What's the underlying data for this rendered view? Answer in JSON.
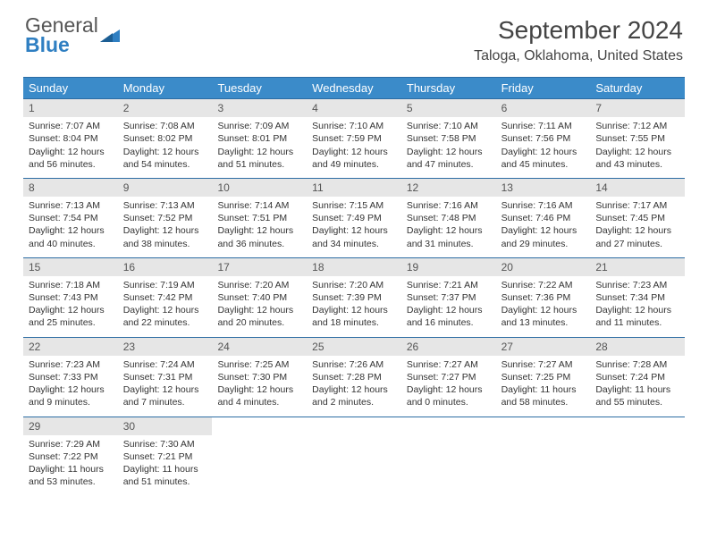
{
  "logo": {
    "line1": "General",
    "line2": "Blue"
  },
  "title": "September 2024",
  "location": "Taloga, Oklahoma, United States",
  "colors": {
    "header_bg": "#3b8bc9",
    "rule": "#2c6ca3",
    "daynum_bg": "#e6e6e6",
    "logo_blue": "#2f7fc2"
  },
  "dow": [
    "Sunday",
    "Monday",
    "Tuesday",
    "Wednesday",
    "Thursday",
    "Friday",
    "Saturday"
  ],
  "weeks": [
    [
      {
        "n": "1",
        "sr": "Sunrise: 7:07 AM",
        "ss": "Sunset: 8:04 PM",
        "d1": "Daylight: 12 hours",
        "d2": "and 56 minutes."
      },
      {
        "n": "2",
        "sr": "Sunrise: 7:08 AM",
        "ss": "Sunset: 8:02 PM",
        "d1": "Daylight: 12 hours",
        "d2": "and 54 minutes."
      },
      {
        "n": "3",
        "sr": "Sunrise: 7:09 AM",
        "ss": "Sunset: 8:01 PM",
        "d1": "Daylight: 12 hours",
        "d2": "and 51 minutes."
      },
      {
        "n": "4",
        "sr": "Sunrise: 7:10 AM",
        "ss": "Sunset: 7:59 PM",
        "d1": "Daylight: 12 hours",
        "d2": "and 49 minutes."
      },
      {
        "n": "5",
        "sr": "Sunrise: 7:10 AM",
        "ss": "Sunset: 7:58 PM",
        "d1": "Daylight: 12 hours",
        "d2": "and 47 minutes."
      },
      {
        "n": "6",
        "sr": "Sunrise: 7:11 AM",
        "ss": "Sunset: 7:56 PM",
        "d1": "Daylight: 12 hours",
        "d2": "and 45 minutes."
      },
      {
        "n": "7",
        "sr": "Sunrise: 7:12 AM",
        "ss": "Sunset: 7:55 PM",
        "d1": "Daylight: 12 hours",
        "d2": "and 43 minutes."
      }
    ],
    [
      {
        "n": "8",
        "sr": "Sunrise: 7:13 AM",
        "ss": "Sunset: 7:54 PM",
        "d1": "Daylight: 12 hours",
        "d2": "and 40 minutes."
      },
      {
        "n": "9",
        "sr": "Sunrise: 7:13 AM",
        "ss": "Sunset: 7:52 PM",
        "d1": "Daylight: 12 hours",
        "d2": "and 38 minutes."
      },
      {
        "n": "10",
        "sr": "Sunrise: 7:14 AM",
        "ss": "Sunset: 7:51 PM",
        "d1": "Daylight: 12 hours",
        "d2": "and 36 minutes."
      },
      {
        "n": "11",
        "sr": "Sunrise: 7:15 AM",
        "ss": "Sunset: 7:49 PM",
        "d1": "Daylight: 12 hours",
        "d2": "and 34 minutes."
      },
      {
        "n": "12",
        "sr": "Sunrise: 7:16 AM",
        "ss": "Sunset: 7:48 PM",
        "d1": "Daylight: 12 hours",
        "d2": "and 31 minutes."
      },
      {
        "n": "13",
        "sr": "Sunrise: 7:16 AM",
        "ss": "Sunset: 7:46 PM",
        "d1": "Daylight: 12 hours",
        "d2": "and 29 minutes."
      },
      {
        "n": "14",
        "sr": "Sunrise: 7:17 AM",
        "ss": "Sunset: 7:45 PM",
        "d1": "Daylight: 12 hours",
        "d2": "and 27 minutes."
      }
    ],
    [
      {
        "n": "15",
        "sr": "Sunrise: 7:18 AM",
        "ss": "Sunset: 7:43 PM",
        "d1": "Daylight: 12 hours",
        "d2": "and 25 minutes."
      },
      {
        "n": "16",
        "sr": "Sunrise: 7:19 AM",
        "ss": "Sunset: 7:42 PM",
        "d1": "Daylight: 12 hours",
        "d2": "and 22 minutes."
      },
      {
        "n": "17",
        "sr": "Sunrise: 7:20 AM",
        "ss": "Sunset: 7:40 PM",
        "d1": "Daylight: 12 hours",
        "d2": "and 20 minutes."
      },
      {
        "n": "18",
        "sr": "Sunrise: 7:20 AM",
        "ss": "Sunset: 7:39 PM",
        "d1": "Daylight: 12 hours",
        "d2": "and 18 minutes."
      },
      {
        "n": "19",
        "sr": "Sunrise: 7:21 AM",
        "ss": "Sunset: 7:37 PM",
        "d1": "Daylight: 12 hours",
        "d2": "and 16 minutes."
      },
      {
        "n": "20",
        "sr": "Sunrise: 7:22 AM",
        "ss": "Sunset: 7:36 PM",
        "d1": "Daylight: 12 hours",
        "d2": "and 13 minutes."
      },
      {
        "n": "21",
        "sr": "Sunrise: 7:23 AM",
        "ss": "Sunset: 7:34 PM",
        "d1": "Daylight: 12 hours",
        "d2": "and 11 minutes."
      }
    ],
    [
      {
        "n": "22",
        "sr": "Sunrise: 7:23 AM",
        "ss": "Sunset: 7:33 PM",
        "d1": "Daylight: 12 hours",
        "d2": "and 9 minutes."
      },
      {
        "n": "23",
        "sr": "Sunrise: 7:24 AM",
        "ss": "Sunset: 7:31 PM",
        "d1": "Daylight: 12 hours",
        "d2": "and 7 minutes."
      },
      {
        "n": "24",
        "sr": "Sunrise: 7:25 AM",
        "ss": "Sunset: 7:30 PM",
        "d1": "Daylight: 12 hours",
        "d2": "and 4 minutes."
      },
      {
        "n": "25",
        "sr": "Sunrise: 7:26 AM",
        "ss": "Sunset: 7:28 PM",
        "d1": "Daylight: 12 hours",
        "d2": "and 2 minutes."
      },
      {
        "n": "26",
        "sr": "Sunrise: 7:27 AM",
        "ss": "Sunset: 7:27 PM",
        "d1": "Daylight: 12 hours",
        "d2": "and 0 minutes."
      },
      {
        "n": "27",
        "sr": "Sunrise: 7:27 AM",
        "ss": "Sunset: 7:25 PM",
        "d1": "Daylight: 11 hours",
        "d2": "and 58 minutes."
      },
      {
        "n": "28",
        "sr": "Sunrise: 7:28 AM",
        "ss": "Sunset: 7:24 PM",
        "d1": "Daylight: 11 hours",
        "d2": "and 55 minutes."
      }
    ],
    [
      {
        "n": "29",
        "sr": "Sunrise: 7:29 AM",
        "ss": "Sunset: 7:22 PM",
        "d1": "Daylight: 11 hours",
        "d2": "and 53 minutes."
      },
      {
        "n": "30",
        "sr": "Sunrise: 7:30 AM",
        "ss": "Sunset: 7:21 PM",
        "d1": "Daylight: 11 hours",
        "d2": "and 51 minutes."
      },
      {
        "empty": true
      },
      {
        "empty": true
      },
      {
        "empty": true
      },
      {
        "empty": true
      },
      {
        "empty": true
      }
    ]
  ]
}
